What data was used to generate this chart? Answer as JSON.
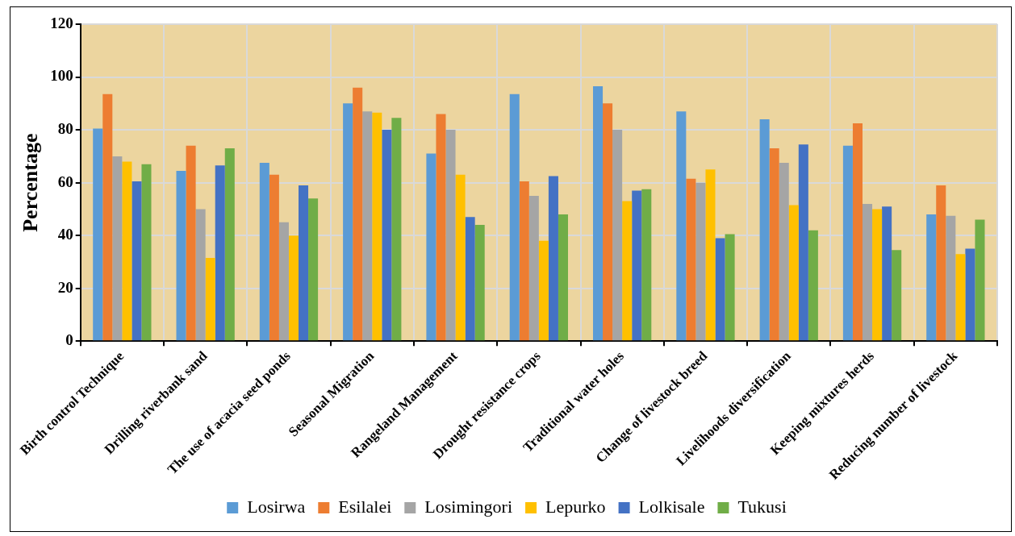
{
  "chart_data": {
    "type": "bar",
    "ylabel": "Percentage",
    "categories": [
      "Birth control Technique",
      "Drilling riverbank sand",
      "The use of acacia seed ponds",
      "Seasonal Migration",
      "Rangeland Management",
      "Drought resistance crops",
      "Traditional water holes",
      "Change of livestock breed",
      "Livelihoods diversification",
      "Keeping mixtures herds",
      "Reducing number of livestock"
    ],
    "series": [
      {
        "name": "Losirwa",
        "color": "#5b9bd5",
        "values": [
          80.5,
          64.5,
          67.5,
          90,
          71,
          93.5,
          96.5,
          87,
          84,
          74,
          48
        ]
      },
      {
        "name": "Esilalei",
        "color": "#ed7d31",
        "values": [
          93.5,
          74,
          63,
          96,
          86,
          60.5,
          90,
          61.5,
          73,
          82.5,
          59
        ]
      },
      {
        "name": "Losimingori",
        "color": "#a5a5a5",
        "values": [
          70,
          50,
          45,
          87,
          80,
          55,
          80,
          60,
          67.5,
          52,
          47.5
        ]
      },
      {
        "name": "Lepurko",
        "color": "#ffc000",
        "values": [
          68,
          31.5,
          40,
          86.5,
          63,
          38,
          53,
          65,
          51.5,
          50,
          33
        ]
      },
      {
        "name": "Lolkisale",
        "color": "#4472c4",
        "values": [
          60.5,
          66.5,
          59,
          80,
          47,
          62.5,
          57,
          39,
          74.5,
          51,
          35
        ]
      },
      {
        "name": "Tukusi",
        "color": "#70ad47",
        "values": [
          67,
          73,
          54,
          84.5,
          44,
          48,
          57.5,
          40.5,
          42,
          34.5,
          46
        ]
      }
    ],
    "ylim": [
      0,
      120
    ],
    "yticks": [
      0,
      20,
      40,
      60,
      80,
      100,
      120
    ],
    "grid": true,
    "legend": "bottom"
  }
}
